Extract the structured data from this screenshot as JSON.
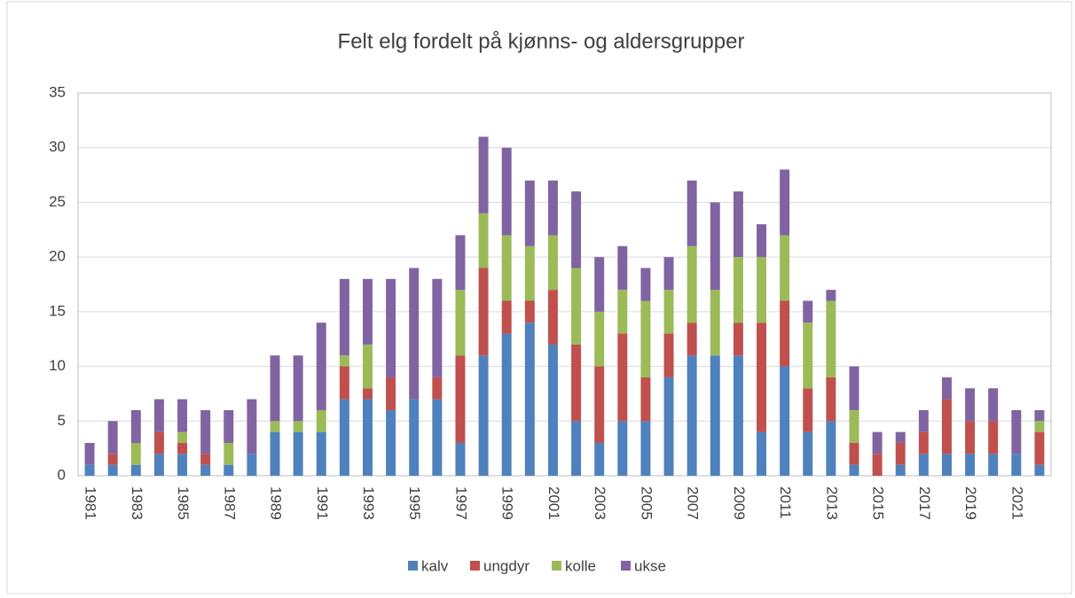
{
  "chart_data": {
    "type": "stacked_bar",
    "title": "Felt elg fordelt på kjønns- og aldersgrupper",
    "categories": [
      "1981",
      null,
      "1983",
      null,
      "1985",
      null,
      "1987",
      null,
      "1989",
      null,
      "1991",
      null,
      "1993",
      null,
      "1995",
      null,
      "1997",
      null,
      "1999",
      null,
      "2001",
      null,
      "2003",
      null,
      "2005",
      null,
      "2007",
      null,
      "2009",
      null,
      "2011",
      null,
      "2013",
      null,
      "2015",
      null,
      "2017",
      null,
      "2019",
      null,
      "2021",
      null
    ],
    "series": [
      {
        "name": "kalv",
        "color": "#4f81bd",
        "values": [
          1,
          1,
          1,
          2,
          2,
          1,
          1,
          2,
          4,
          4,
          4,
          7,
          7,
          6,
          7,
          7,
          3,
          11,
          13,
          14,
          12,
          5,
          3,
          5,
          5,
          9,
          11,
          11,
          11,
          4,
          10,
          4,
          5,
          1,
          0,
          1,
          2,
          2,
          2,
          2,
          2,
          1
        ]
      },
      {
        "name": "ungdyr",
        "color": "#c0504d",
        "values": [
          0,
          1,
          0,
          2,
          1,
          1,
          0,
          0,
          0,
          0,
          0,
          3,
          1,
          3,
          0,
          2,
          8,
          8,
          3,
          2,
          5,
          7,
          7,
          8,
          4,
          4,
          3,
          0,
          3,
          10,
          6,
          4,
          4,
          2,
          2,
          2,
          2,
          5,
          3,
          3,
          0,
          3
        ]
      },
      {
        "name": "kolle",
        "color": "#9bbb59",
        "values": [
          0,
          0,
          2,
          0,
          1,
          0,
          2,
          0,
          1,
          1,
          2,
          1,
          4,
          0,
          0,
          0,
          6,
          5,
          6,
          5,
          5,
          7,
          5,
          4,
          7,
          4,
          7,
          6,
          6,
          6,
          6,
          6,
          7,
          3,
          0,
          0,
          0,
          0,
          0,
          0,
          0,
          1
        ]
      },
      {
        "name": "ukse",
        "color": "#8064a2",
        "values": [
          2,
          3,
          3,
          3,
          3,
          4,
          3,
          5,
          6,
          6,
          8,
          7,
          6,
          9,
          12,
          9,
          5,
          7,
          8,
          6,
          5,
          7,
          5,
          4,
          3,
          3,
          6,
          8,
          6,
          3,
          6,
          2,
          1,
          4,
          2,
          1,
          2,
          2,
          3,
          3,
          4,
          1
        ]
      }
    ],
    "ylim": [
      0,
      35
    ],
    "yticks": [
      0,
      5,
      10,
      15,
      20,
      25,
      30,
      35
    ],
    "grid": true,
    "legend": "bottom"
  }
}
